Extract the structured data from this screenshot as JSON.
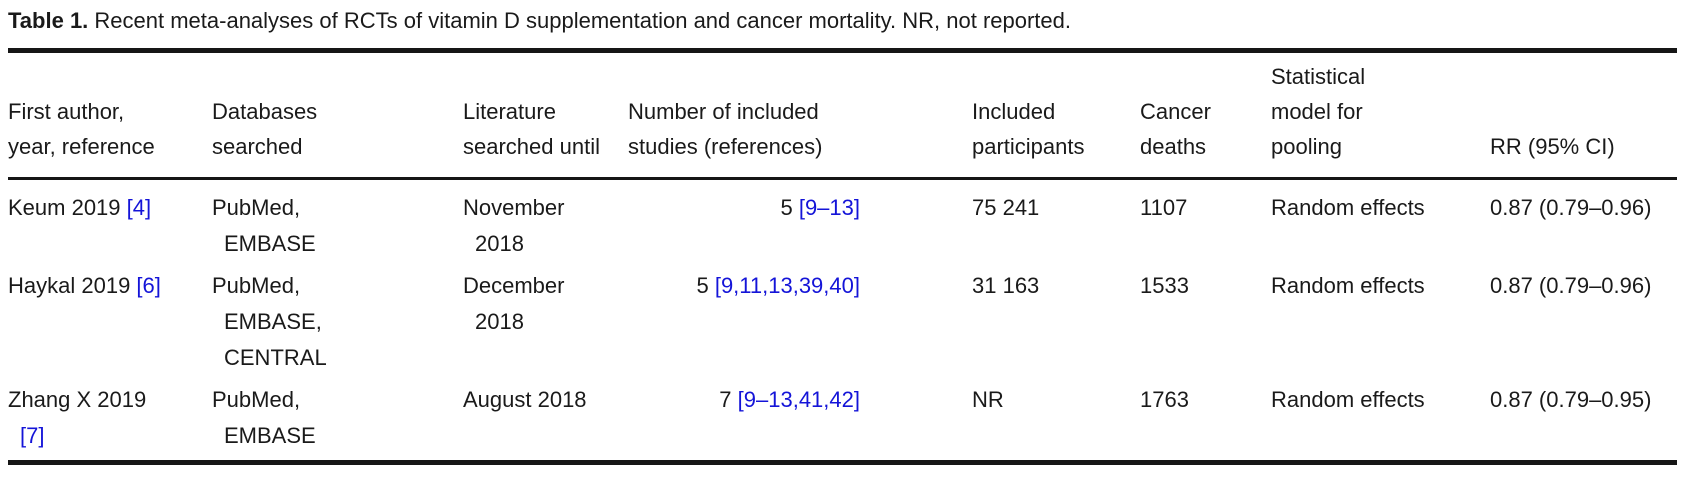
{
  "caption": {
    "label": "Table 1.",
    "text": " Recent meta-analyses of RCTs of vitamin D supplementation and cancer mortality. NR, not reported."
  },
  "colors": {
    "text": "#1a1a1a",
    "rule": "#161616",
    "reference_blue": "#1414d8"
  },
  "table": {
    "columns": [
      {
        "id": "author",
        "header_lines": [
          "First author,",
          "year, reference"
        ]
      },
      {
        "id": "db",
        "header_lines": [
          "Databases",
          "searched"
        ]
      },
      {
        "id": "lit",
        "header_lines": [
          "Literature",
          "searched until"
        ]
      },
      {
        "id": "studies",
        "header_lines": [
          "Number of included",
          "studies (references)"
        ]
      },
      {
        "id": "partic",
        "header_lines": [
          "Included",
          "participants"
        ]
      },
      {
        "id": "deaths",
        "header_lines": [
          "Cancer",
          "deaths"
        ]
      },
      {
        "id": "model",
        "header_lines": [
          "Statistical",
          "model for",
          "pooling"
        ]
      },
      {
        "id": "rr",
        "header_lines": [
          "RR (95% CI)"
        ]
      }
    ],
    "rows": [
      {
        "cells": [
          {
            "lines": [
              {
                "pre": "Keum 2019 ",
                "link": "[4]"
              }
            ]
          },
          {
            "lines": [
              {
                "pre": "PubMed,"
              },
              {
                "pre": "EMBASE",
                "indent": true
              }
            ]
          },
          {
            "lines": [
              {
                "pre": "November"
              },
              {
                "pre": "2018",
                "indent": true
              }
            ]
          },
          {
            "lines": [
              {
                "pre": "5 ",
                "link": "[9–13]"
              }
            ]
          },
          {
            "lines": [
              {
                "pre": "75 241"
              }
            ]
          },
          {
            "lines": [
              {
                "pre": "1107"
              }
            ]
          },
          {
            "lines": [
              {
                "pre": "Random effects"
              }
            ]
          },
          {
            "lines": [
              {
                "pre": "0.87 (0.79–0.96)"
              }
            ]
          }
        ]
      },
      {
        "cells": [
          {
            "lines": [
              {
                "pre": "Haykal 2019 ",
                "link": "[6]"
              }
            ]
          },
          {
            "lines": [
              {
                "pre": "PubMed,"
              },
              {
                "pre": "EMBASE,",
                "indent": true
              },
              {
                "pre": "CENTRAL",
                "indent": true
              }
            ]
          },
          {
            "lines": [
              {
                "pre": "December"
              },
              {
                "pre": "2018",
                "indent": true
              }
            ]
          },
          {
            "lines": [
              {
                "pre": "5 ",
                "link": "[9,11,13,39,40]"
              }
            ]
          },
          {
            "lines": [
              {
                "pre": "31 163"
              }
            ]
          },
          {
            "lines": [
              {
                "pre": "1533"
              }
            ]
          },
          {
            "lines": [
              {
                "pre": "Random effects"
              }
            ]
          },
          {
            "lines": [
              {
                "pre": "0.87 (0.79–0.96)"
              }
            ]
          }
        ]
      },
      {
        "cells": [
          {
            "lines": [
              {
                "pre": "Zhang X 2019"
              },
              {
                "link": "[7]",
                "indent": true
              }
            ]
          },
          {
            "lines": [
              {
                "pre": "PubMed,"
              },
              {
                "pre": "EMBASE",
                "indent": true
              }
            ]
          },
          {
            "lines": [
              {
                "pre": "August 2018"
              }
            ]
          },
          {
            "lines": [
              {
                "pre": "7 ",
                "link": "[9–13,41,42]"
              }
            ]
          },
          {
            "lines": [
              {
                "pre": "NR"
              }
            ]
          },
          {
            "lines": [
              {
                "pre": "1763"
              }
            ]
          },
          {
            "lines": [
              {
                "pre": "Random effects"
              }
            ]
          },
          {
            "lines": [
              {
                "pre": "0.87 (0.79–0.95)"
              }
            ]
          }
        ]
      }
    ]
  }
}
